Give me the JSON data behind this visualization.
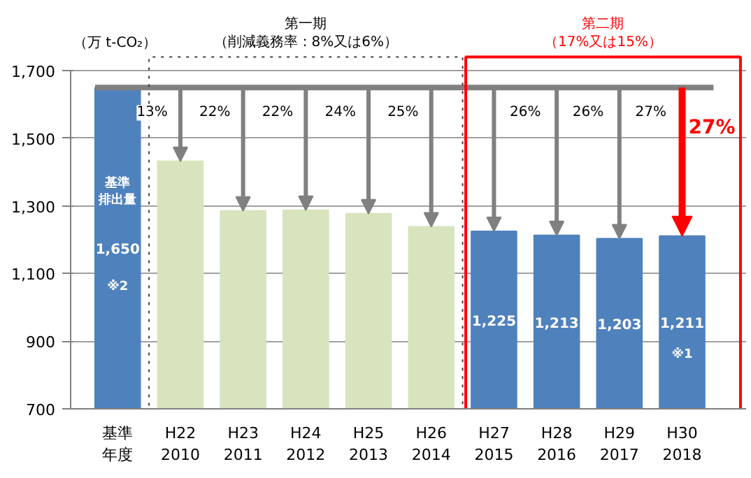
{
  "chart_data": {
    "type": "bar",
    "ylabel": "（万 t-CO₂）",
    "categories": [
      "基準年度",
      "H22\n2010",
      "H23\n2011",
      "H24\n2012",
      "H25\n2013",
      "H26\n2014",
      "H27\n2015",
      "H28\n2016",
      "H29\n2017",
      "H30\n2018"
    ],
    "values": [
      1650,
      1432,
      1285,
      1287,
      1277,
      1238,
      1225,
      1213,
      1203,
      1211
    ],
    "colors": [
      "#4f81bd",
      "#d7e4bd",
      "#d7e4bd",
      "#d7e4bd",
      "#d7e4bd",
      "#d7e4bd",
      "#4f81bd",
      "#4f81bd",
      "#4f81bd",
      "#4f81bd"
    ],
    "value_labels": [
      "1,650",
      null,
      null,
      null,
      null,
      null,
      "1,225",
      "1,213",
      "1,203",
      "1,211"
    ],
    "ylim": [
      700,
      1700
    ],
    "yticks": [
      {
        "value": 700,
        "label": "700"
      },
      {
        "value": 900,
        "label": "900"
      },
      {
        "value": 1100,
        "label": "1,100"
      },
      {
        "value": 1300,
        "label": "1,300"
      },
      {
        "value": 1500,
        "label": "1,500"
      },
      {
        "value": 1700,
        "label": "1,700"
      }
    ],
    "grid": "y",
    "ref_lines": [
      {
        "axis": "y",
        "value": 1650,
        "label": null,
        "color": "#808080"
      }
    ],
    "annotations": [
      "第一期（削減義務率：8%又は6%）",
      "第二期（17%又は15%）",
      "基準排出量",
      "※2",
      "※1",
      "13%",
      "22%",
      "22%",
      "24%",
      "25%",
      "26%",
      "26%",
      "27%",
      "27%"
    ]
  }
}
